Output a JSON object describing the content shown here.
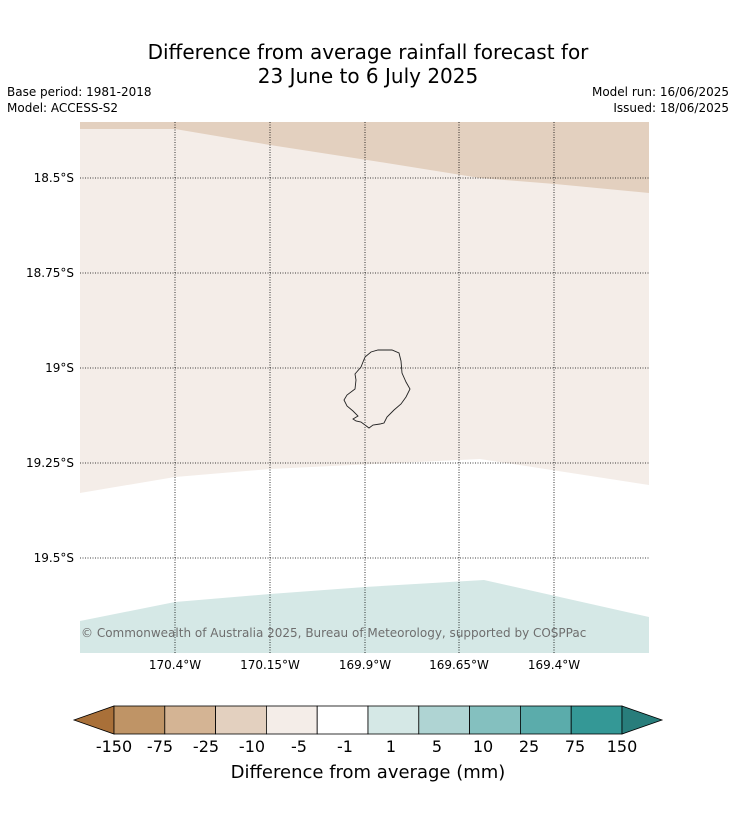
{
  "header": {
    "title_line1": "Difference from average rainfall forecast for",
    "title_line2": "23 June to 6 July 2025",
    "base_period": "Base period: 1981-2018",
    "model": "Model: ACCESS-S2",
    "model_run": "Model run: 16/06/2025",
    "issued": "Issued: 18/06/2025"
  },
  "map": {
    "lat_labels": [
      "18.5°S",
      "18.75°S",
      "19°S",
      "19.25°S",
      "19.5°S"
    ],
    "lon_labels": [
      "170.4°W",
      "170.15°W",
      "169.9°W",
      "169.65°W",
      "169.4°W"
    ],
    "copyright": "© Commonwealth of Australia 2025, Bureau of Meteorology, supported by COSPPac",
    "region_categories": [
      "-10 to -5",
      "-5 to -1",
      "-1 to 1",
      "1 to 5"
    ]
  },
  "colorbar": {
    "label": "Difference from average (mm)",
    "ticks": [
      "-150",
      "-75",
      "-25",
      "-10",
      "-5",
      "-1",
      "1",
      "5",
      "10",
      "25",
      "75",
      "150"
    ],
    "colors": [
      "#a97039",
      "#bf9466",
      "#d4b494",
      "#e3d0bf",
      "#f4ede8",
      "#ffffff",
      "#d5e8e6",
      "#afd4d3",
      "#84c0bf",
      "#5bacab",
      "#349896",
      "#287d7b"
    ]
  }
}
